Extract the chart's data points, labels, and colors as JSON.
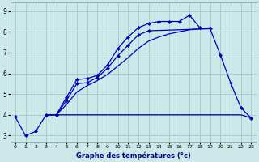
{
  "bg_color": "#cce8e8",
  "line_color": "#0000bb",
  "grid_color": "#aacccc",
  "title": "Graphe des températures (°c)",
  "ylabel_values": [
    3,
    4,
    5,
    6,
    7,
    8,
    9
  ],
  "xlabel_values": [
    0,
    1,
    2,
    3,
    4,
    5,
    6,
    7,
    8,
    9,
    10,
    11,
    12,
    13,
    14,
    15,
    16,
    17,
    18,
    19,
    20,
    21,
    22,
    23
  ],
  "xlim": [
    -0.5,
    23.5
  ],
  "ylim": [
    2.7,
    9.4
  ],
  "lines": [
    {
      "x": [
        0,
        1,
        2,
        3,
        4,
        5,
        6,
        7,
        8,
        9,
        10,
        11,
        12,
        13,
        14,
        15,
        16,
        17,
        18
      ],
      "y": [
        3.9,
        3.0,
        3.2,
        4.0,
        4.0,
        4.85,
        5.7,
        5.75,
        5.9,
        6.4,
        7.2,
        7.75,
        8.2,
        8.4,
        8.5,
        8.5,
        8.5,
        8.8,
        8.2
      ],
      "marker": true
    },
    {
      "x": [
        3,
        4,
        5,
        6,
        7,
        8,
        9,
        10,
        11,
        12,
        13,
        19,
        20,
        21,
        22,
        23
      ],
      "y": [
        4.0,
        4.0,
        4.7,
        5.5,
        5.55,
        5.8,
        6.25,
        6.85,
        7.35,
        7.85,
        8.05,
        8.15,
        6.9,
        5.55,
        4.35,
        3.85
      ],
      "marker": true
    },
    {
      "x": [
        3,
        4,
        5,
        6,
        7,
        8,
        9,
        10,
        11,
        12,
        13,
        14,
        15,
        16,
        17,
        18,
        19
      ],
      "y": [
        4.0,
        4.0,
        4.5,
        5.1,
        5.4,
        5.65,
        5.95,
        6.35,
        6.75,
        7.2,
        7.55,
        7.75,
        7.9,
        8.0,
        8.1,
        8.15,
        8.2
      ],
      "marker": false
    },
    {
      "x": [
        3,
        19,
        20,
        21,
        22,
        23
      ],
      "y": [
        4.0,
        4.0,
        4.0,
        4.0,
        4.0,
        3.85
      ],
      "marker": false
    }
  ]
}
